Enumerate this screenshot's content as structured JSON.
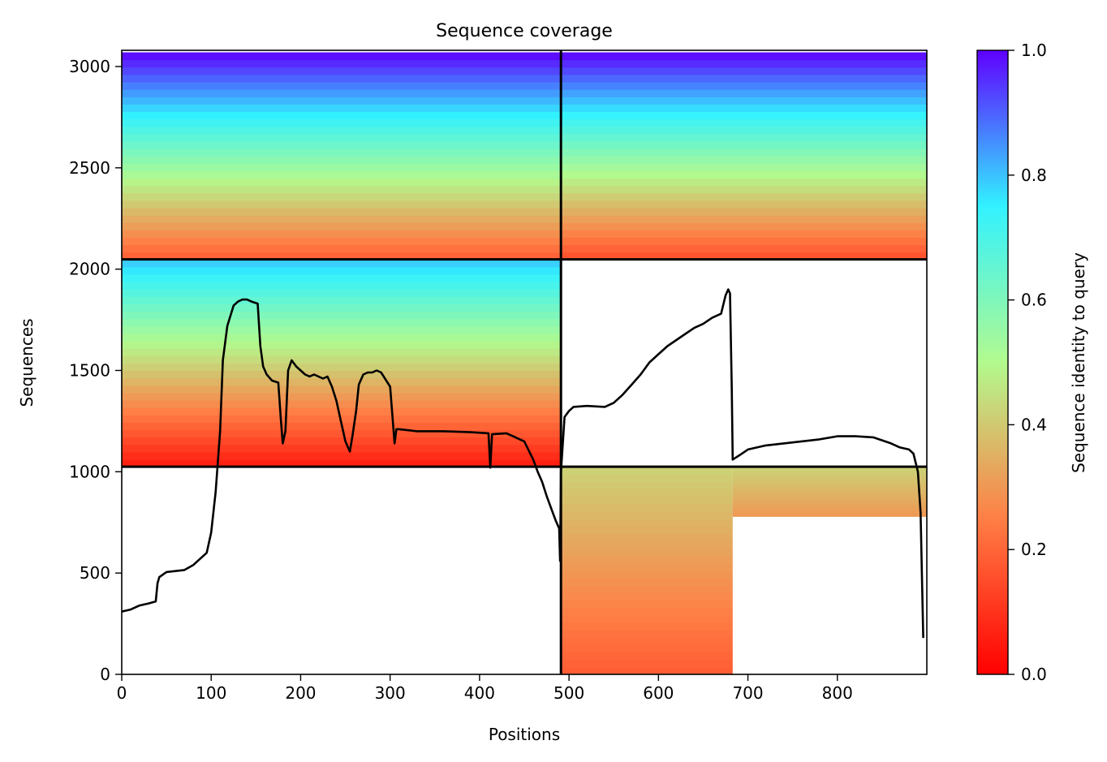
{
  "chart_data": {
    "type": "heatmap",
    "title": "Sequence coverage",
    "xlabel": "Positions",
    "ylabel": "Sequences",
    "xlim": [
      0,
      900
    ],
    "ylim": [
      0,
      3080
    ],
    "xticks": [
      0,
      100,
      200,
      300,
      400,
      500,
      600,
      700,
      800
    ],
    "yticks": [
      0,
      500,
      1000,
      1500,
      2000,
      2500,
      3000
    ],
    "grid": false,
    "colormap": "rainbow_r",
    "colorbar": {
      "label": "Sequence identity to query",
      "range": [
        0.0,
        1.0
      ],
      "ticks": [
        "0.0",
        "0.2",
        "0.4",
        "0.6",
        "0.8",
        "1.0"
      ],
      "colors": [
        "#ff0000",
        "#ff7f46",
        "#b2fa8e",
        "#32f2ff",
        "#5f00ff"
      ]
    },
    "separators": {
      "vertical_x": [
        491
      ],
      "horizontal_y": [
        1025,
        2048
      ]
    },
    "coverage_blocks": [
      {
        "x": [
          0,
          491
        ],
        "y": [
          2048,
          3070
        ],
        "identity_top": 1.0,
        "identity_bottom": 0.18
      },
      {
        "x": [
          491,
          900
        ],
        "y": [
          2048,
          3070
        ],
        "identity_top": 1.0,
        "identity_bottom": 0.15
      },
      {
        "x": [
          0,
          491
        ],
        "y": [
          1025,
          2048
        ],
        "identity_top": 0.8,
        "identity_bottom": 0.05
      },
      {
        "x": [
          491,
          683
        ],
        "y": [
          0,
          1025
        ],
        "identity_top": 0.42,
        "identity_bottom": 0.18
      },
      {
        "x": [
          683,
          900
        ],
        "y": [
          780,
          1025
        ],
        "identity_top": 0.42,
        "identity_bottom": 0.3
      }
    ],
    "series": [
      {
        "x": [
          0,
          10,
          20,
          30,
          38,
          40,
          42,
          50,
          60,
          70,
          80,
          90,
          95,
          100,
          105,
          110,
          113,
          118,
          125,
          130,
          135,
          140,
          145,
          152,
          155,
          158,
          162,
          168,
          175,
          178,
          180,
          183,
          186,
          190,
          195,
          200,
          205,
          210,
          215,
          220,
          225,
          230,
          235,
          240,
          245,
          250,
          255,
          258,
          262,
          265,
          270,
          275,
          280,
          285,
          290,
          300,
          305,
          307,
          310,
          330,
          360,
          390,
          410,
          412,
          414,
          430,
          450,
          460,
          465,
          470,
          475,
          480,
          485,
          489,
          490,
          491,
          495,
          500,
          505,
          520,
          540,
          550,
          560,
          570,
          580,
          590,
          600,
          610,
          620,
          630,
          640,
          650,
          660,
          670,
          675,
          678,
          680,
          682,
          683,
          690,
          700,
          720,
          740,
          760,
          780,
          800,
          820,
          840,
          860,
          870,
          880,
          885,
          890,
          893,
          896
        ],
        "values": [
          310,
          320,
          340,
          350,
          360,
          450,
          480,
          505,
          510,
          515,
          540,
          580,
          600,
          700,
          900,
          1200,
          1550,
          1720,
          1820,
          1840,
          1850,
          1850,
          1840,
          1830,
          1620,
          1520,
          1480,
          1450,
          1440,
          1250,
          1140,
          1200,
          1500,
          1550,
          1520,
          1500,
          1480,
          1470,
          1480,
          1470,
          1460,
          1470,
          1420,
          1350,
          1250,
          1150,
          1100,
          1180,
          1300,
          1430,
          1480,
          1490,
          1490,
          1500,
          1490,
          1420,
          1140,
          1210,
          1210,
          1200,
          1200,
          1195,
          1190,
          1020,
          1185,
          1190,
          1150,
          1060,
          1000,
          950,
          880,
          820,
          760,
          720,
          560,
          1000,
          1270,
          1300,
          1320,
          1325,
          1320,
          1340,
          1380,
          1430,
          1480,
          1540,
          1580,
          1620,
          1650,
          1680,
          1710,
          1730,
          1760,
          1780,
          1870,
          1900,
          1880,
          1400,
          1060,
          1080,
          1110,
          1130,
          1140,
          1150,
          1160,
          1175,
          1175,
          1170,
          1140,
          1120,
          1110,
          1090,
          1000,
          800,
          180
        ]
      }
    ]
  }
}
